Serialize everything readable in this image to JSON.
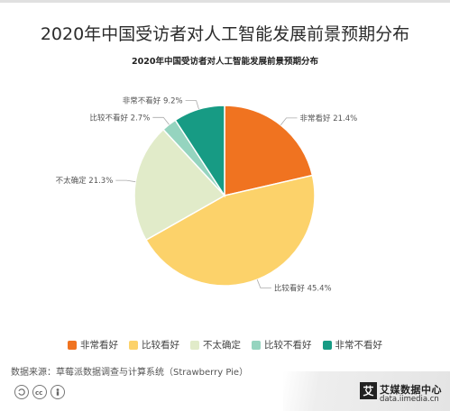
{
  "header": {
    "title": "2020年中国受访者对人工智能发展前景预期分布"
  },
  "chart_data": {
    "type": "pie",
    "title": "2020年中国受访者对人工智能发展前景预期分布",
    "unit": "%",
    "slices": [
      {
        "label": "非常看好",
        "value": 21.4,
        "color": "#f07320",
        "data_label": "非常看好 21.4%"
      },
      {
        "label": "比较看好",
        "value": 45.4,
        "color": "#fcd26a",
        "data_label": "比较看好 45.4%"
      },
      {
        "label": "不太确定",
        "value": 21.3,
        "color": "#e1ebc9",
        "data_label": "不太确定 21.3%"
      },
      {
        "label": "比较不看好",
        "value": 2.7,
        "color": "#95d4bf",
        "data_label": "比较不看好 2.7%"
      },
      {
        "label": "非常不看好",
        "value": 9.2,
        "color": "#179b84",
        "data_label": "非常不看好 9.2%"
      }
    ],
    "legend_position": "bottom"
  },
  "footer": {
    "source": "数据来源：草莓派数据调查与计算系统（Strawberry Pie）",
    "license_icons": [
      "cc-icon",
      "by-icon",
      "person-icon"
    ]
  },
  "brand": {
    "logo_char": "艾",
    "name": "艾媒数据中心",
    "url": "data.iimedia.cn"
  }
}
